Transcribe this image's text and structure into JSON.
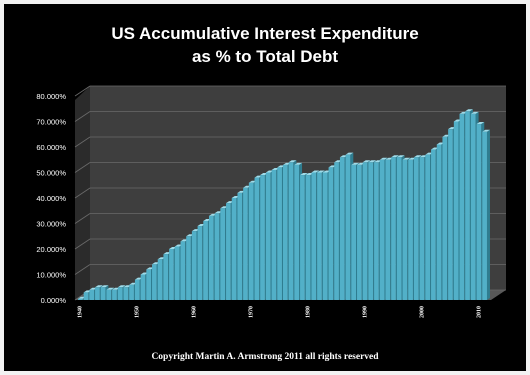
{
  "chart_data": {
    "type": "bar",
    "title": "US Accumulative Interest Expenditure",
    "subtitle": "as % to Total Debt",
    "ylim": [
      0,
      80
    ],
    "yticks": [
      "0.000%",
      "10.000%",
      "20.000%",
      "30.000%",
      "40.000%",
      "50.000%",
      "60.000%",
      "70.000%",
      "80.000%"
    ],
    "xticks": [
      "1940",
      "1950",
      "1960",
      "1970",
      "1980",
      "1990",
      "2000",
      "2010"
    ],
    "start_year": 1940,
    "end_year": 2011,
    "years": [
      1940,
      1941,
      1942,
      1943,
      1944,
      1945,
      1946,
      1947,
      1948,
      1949,
      1950,
      1951,
      1952,
      1953,
      1954,
      1955,
      1956,
      1957,
      1958,
      1959,
      1960,
      1961,
      1962,
      1963,
      1964,
      1965,
      1966,
      1967,
      1968,
      1969,
      1970,
      1971,
      1972,
      1973,
      1974,
      1975,
      1976,
      1977,
      1978,
      1979,
      1980,
      1981,
      1982,
      1983,
      1984,
      1985,
      1986,
      1987,
      1988,
      1989,
      1990,
      1991,
      1992,
      1993,
      1994,
      1995,
      1996,
      1997,
      1998,
      1999,
      2000,
      2001,
      2002,
      2003,
      2004,
      2005,
      2006,
      2007,
      2008,
      2009,
      2010,
      2011
    ],
    "values": [
      0.5,
      3,
      4,
      5,
      5,
      4,
      4,
      5,
      5,
      6,
      8,
      10,
      12,
      14,
      16,
      18,
      20,
      21,
      23,
      25,
      27,
      29,
      31,
      33,
      34,
      36,
      38,
      40,
      42,
      44,
      46,
      48,
      49,
      50,
      51,
      52,
      53,
      54,
      53,
      49,
      49,
      50,
      50,
      50,
      52,
      54,
      56,
      57,
      53,
      53,
      54,
      54,
      54,
      55,
      55,
      56,
      56,
      55,
      55,
      56,
      56,
      57,
      59,
      61,
      64,
      67,
      70,
      73,
      74,
      73,
      69,
      66
    ],
    "series_color": "#52b0c8",
    "grid": true,
    "legend": "none"
  },
  "footer": {
    "copyright": "Copyright Martin A. Armstrong 2011 all rights reserved"
  }
}
